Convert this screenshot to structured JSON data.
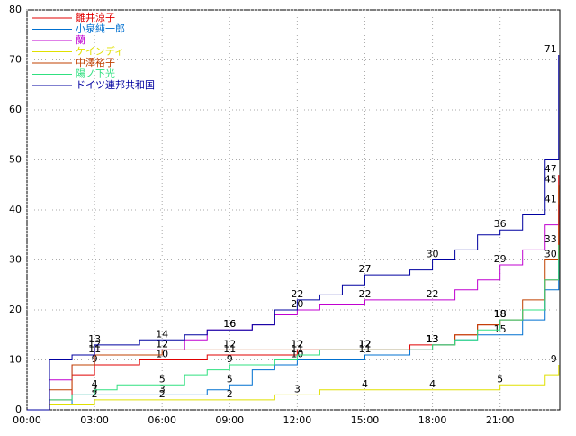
{
  "chart_data": {
    "type": "line",
    "step": true,
    "grid": true,
    "legend": "upper-left",
    "x": [
      0,
      1,
      2,
      3,
      4,
      5,
      6,
      7,
      8,
      9,
      10,
      11,
      12,
      13,
      14,
      15,
      16,
      17,
      18,
      19,
      20,
      21,
      22,
      23,
      23.6
    ],
    "xlim": [
      0,
      23.65
    ],
    "xticks": [
      {
        "value": 0,
        "label": "00:00"
      },
      {
        "value": 3,
        "label": "03:00"
      },
      {
        "value": 6,
        "label": "06:00"
      },
      {
        "value": 9,
        "label": "09:00"
      },
      {
        "value": 12,
        "label": "12:00"
      },
      {
        "value": 15,
        "label": "15:00"
      },
      {
        "value": 18,
        "label": "18:00"
      },
      {
        "value": 21,
        "label": "21:00"
      }
    ],
    "ylim": [
      0,
      80
    ],
    "yticks": [
      0,
      10,
      20,
      30,
      40,
      50,
      60,
      70,
      80
    ],
    "series": [
      {
        "name": "雛井涼子",
        "color": "#e00000",
        "values": [
          0,
          2,
          7,
          9,
          9,
          10,
          10,
          10,
          11,
          11,
          11,
          11,
          12,
          12,
          12,
          12,
          12,
          13,
          13,
          15,
          17,
          18,
          20,
          26,
          47
        ]
      },
      {
        "name": "小泉純一郎",
        "color": "#0070d0",
        "values": [
          0,
          1,
          3,
          3,
          3,
          3,
          3,
          3,
          4,
          5,
          8,
          9,
          10,
          10,
          10,
          11,
          11,
          12,
          13,
          14,
          15,
          15,
          18,
          24,
          30
        ]
      },
      {
        "name": "蘭",
        "color": "#c000d0",
        "values": [
          0,
          6,
          9,
          12,
          12,
          12,
          12,
          14,
          16,
          16,
          17,
          19,
          20,
          21,
          21,
          22,
          22,
          22,
          22,
          24,
          26,
          29,
          32,
          37,
          41
        ]
      },
      {
        "name": "ケインディ",
        "color": "#e0e000",
        "values": [
          0,
          1,
          1,
          2,
          2,
          2,
          2,
          2,
          2,
          2,
          2,
          3,
          3,
          4,
          4,
          4,
          4,
          4,
          4,
          4,
          4,
          5,
          5,
          7,
          9
        ]
      },
      {
        "name": "中澤裕子",
        "color": "#c04000",
        "values": [
          0,
          4,
          9,
          11,
          11,
          11,
          12,
          12,
          12,
          12,
          12,
          12,
          12,
          12,
          12,
          12,
          12,
          12,
          13,
          15,
          17,
          18,
          22,
          30,
          45
        ]
      },
      {
        "name": "陽ノ下光",
        "color": "#30e080",
        "values": [
          0,
          2,
          3,
          4,
          5,
          5,
          5,
          7,
          8,
          9,
          9,
          10,
          11,
          12,
          12,
          12,
          12,
          12,
          13,
          14,
          16,
          18,
          20,
          26,
          33
        ]
      },
      {
        "name": "ドイツ連邦共和国",
        "color": "#0000a0",
        "values": [
          0,
          10,
          11,
          13,
          13,
          14,
          14,
          15,
          16,
          16,
          17,
          20,
          22,
          23,
          25,
          27,
          27,
          28,
          30,
          32,
          35,
          36,
          39,
          50,
          71
        ]
      }
    ]
  }
}
